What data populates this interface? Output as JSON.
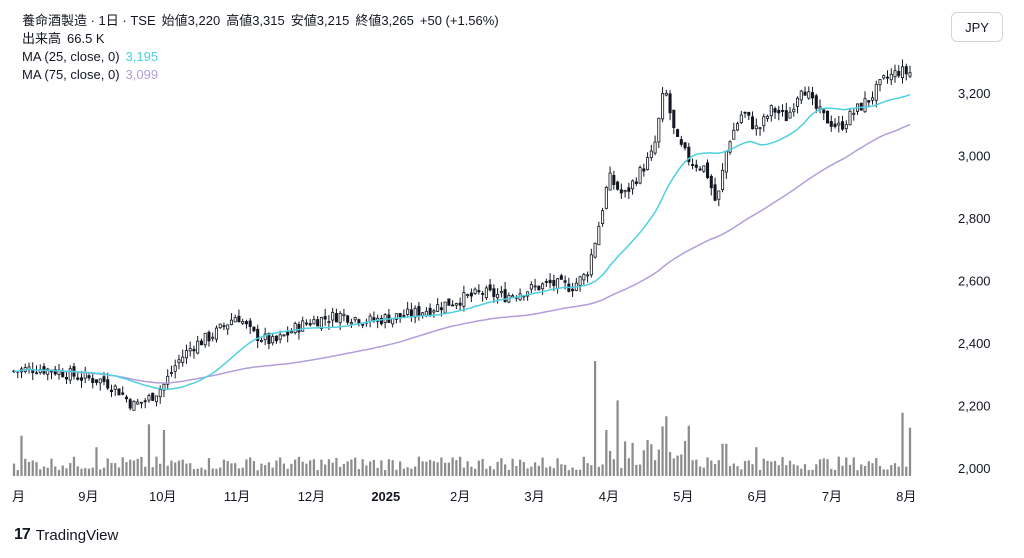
{
  "header": {
    "symbol": "養命酒製造 · 1日 · TSE",
    "open_label": "始値",
    "open": "3,220",
    "high_label": "高値",
    "high": "3,315",
    "low_label": "安値",
    "low": "3,215",
    "close_label": "終値",
    "close": "3,265",
    "change": "+50 (+1.56%)",
    "volume_label": "出来高",
    "volume": "66.5 K",
    "ma25_label": "MA (25, close, 0)",
    "ma25_value": "3,195",
    "ma75_label": "MA (75, close, 0)",
    "ma75_value": "3,099"
  },
  "currency_button": "JPY",
  "brand": {
    "logo": "17",
    "name": "TradingView"
  },
  "colors": {
    "up": "#131722",
    "down": "#131722",
    "ma25": "#4dd0e1",
    "ma75": "#b39ddb",
    "volume": "#8c8c8c"
  },
  "chart_data": {
    "type": "candlestick",
    "y_ticks": [
      2000,
      2200,
      2400,
      2600,
      2800,
      3000,
      3200
    ],
    "y_tick_labels": [
      "2,000",
      "2,200",
      "2,400",
      "2,600",
      "2,800",
      "3,000",
      "3,200"
    ],
    "ylim": [
      1950,
      3350
    ],
    "x_labels": [
      {
        "label": "月",
        "month": 8,
        "bold": false
      },
      {
        "label": "9月",
        "month": 9,
        "bold": false
      },
      {
        "label": "10月",
        "month": 10,
        "bold": false
      },
      {
        "label": "11月",
        "month": 11,
        "bold": false
      },
      {
        "label": "12月",
        "month": 12,
        "bold": false
      },
      {
        "label": "2025",
        "month": 13,
        "bold": true
      },
      {
        "label": "2月",
        "month": 14,
        "bold": false
      },
      {
        "label": "3月",
        "month": 15,
        "bold": false
      },
      {
        "label": "4月",
        "month": 16,
        "bold": false
      },
      {
        "label": "5月",
        "month": 17,
        "bold": false
      },
      {
        "label": "6月",
        "month": 18,
        "bold": false
      },
      {
        "label": "7月",
        "month": 19,
        "bold": false
      },
      {
        "label": "8月",
        "month": 20,
        "bold": false
      }
    ],
    "close_anchors": [
      [
        8.0,
        2310
      ],
      [
        8.3,
        2320
      ],
      [
        8.6,
        2310
      ],
      [
        8.9,
        2290
      ],
      [
        9.2,
        2280
      ],
      [
        9.4,
        2250
      ],
      [
        9.6,
        2200
      ],
      [
        9.8,
        2220
      ],
      [
        10.0,
        2260
      ],
      [
        10.2,
        2340
      ],
      [
        10.4,
        2390
      ],
      [
        10.7,
        2430
      ],
      [
        11.0,
        2490
      ],
      [
        11.2,
        2430
      ],
      [
        11.5,
        2400
      ],
      [
        11.8,
        2450
      ],
      [
        12.0,
        2470
      ],
      [
        12.4,
        2490
      ],
      [
        12.8,
        2470
      ],
      [
        13.0,
        2480
      ],
      [
        13.3,
        2490
      ],
      [
        13.6,
        2510
      ],
      [
        14.0,
        2540
      ],
      [
        14.3,
        2560
      ],
      [
        14.6,
        2550
      ],
      [
        14.9,
        2570
      ],
      [
        15.2,
        2590
      ],
      [
        15.5,
        2580
      ],
      [
        15.7,
        2620
      ],
      [
        15.85,
        2760
      ],
      [
        16.0,
        2930
      ],
      [
        16.2,
        2870
      ],
      [
        16.4,
        2940
      ],
      [
        16.6,
        3010
      ],
      [
        16.75,
        3220
      ],
      [
        16.9,
        3050
      ],
      [
        17.1,
        2980
      ],
      [
        17.3,
        2960
      ],
      [
        17.45,
        2840
      ],
      [
        17.6,
        3040
      ],
      [
        17.8,
        3140
      ],
      [
        18.0,
        3080
      ],
      [
        18.2,
        3150
      ],
      [
        18.4,
        3120
      ],
      [
        18.6,
        3230
      ],
      [
        18.75,
        3160
      ],
      [
        18.9,
        3120
      ],
      [
        19.1,
        3090
      ],
      [
        19.3,
        3140
      ],
      [
        19.5,
        3180
      ],
      [
        19.7,
        3240
      ],
      [
        19.9,
        3270
      ],
      [
        20.0,
        3265
      ]
    ],
    "volume_scale_label": "",
    "volume_spikes": [
      [
        8.1,
        0.35
      ],
      [
        9.1,
        0.25
      ],
      [
        9.8,
        0.45
      ],
      [
        10.0,
        0.4
      ],
      [
        15.8,
        1.0
      ],
      [
        15.95,
        0.4
      ],
      [
        16.1,
        0.55
      ],
      [
        16.3,
        0.28
      ],
      [
        16.75,
        0.42
      ],
      [
        17.05,
        0.3
      ],
      [
        17.55,
        0.28
      ],
      [
        18.0,
        0.25
      ],
      [
        19.95,
        0.55
      ],
      [
        20.05,
        0.42
      ]
    ],
    "last_close": 3265,
    "last_ma25": 3195,
    "last_ma75": 3099
  }
}
